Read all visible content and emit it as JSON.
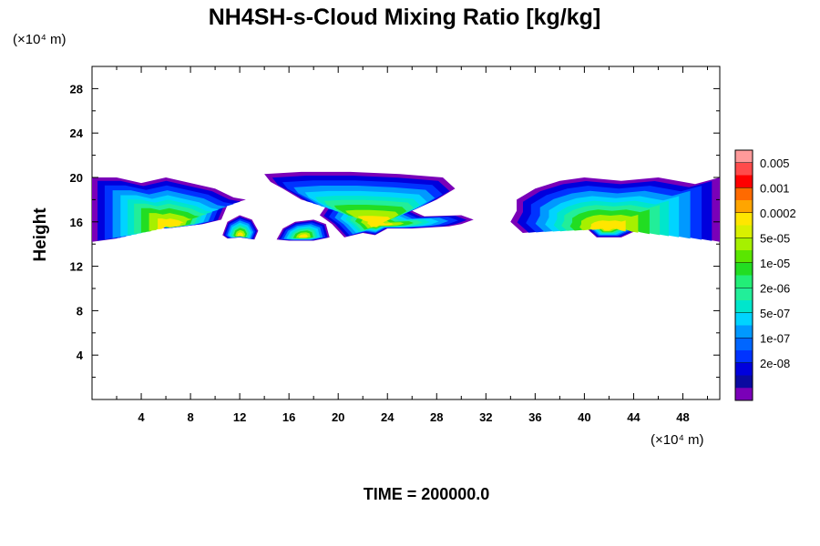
{
  "chart_data": {
    "type": "heatmap",
    "title": "NH4SH-s-Cloud Mixing Ratio [kg/kg]",
    "ylabel": "Height",
    "xlabel": "",
    "x_unit": "(×10⁴ m)",
    "y_unit": "(×10⁴ m)",
    "xlim": [
      0,
      51
    ],
    "ylim": [
      0,
      30
    ],
    "x_ticks": [
      "4",
      "8",
      "12",
      "16",
      "20",
      "24",
      "28",
      "32",
      "36",
      "40",
      "44",
      "48"
    ],
    "y_ticks": [
      "4",
      "8",
      "12",
      "16",
      "20",
      "24",
      "28"
    ],
    "footer": "TIME = 200000.0",
    "colorbar": {
      "labels": [
        "0.005",
        "0.001",
        "0.0002",
        "5e-05",
        "1e-05",
        "2e-06",
        "5e-07",
        "1e-07",
        "2e-08"
      ],
      "colors": [
        "#ff9a9a",
        "#ff4b4b",
        "#ff0000",
        "#ff6a00",
        "#ffa500",
        "#ffe600",
        "#d9f000",
        "#a6f000",
        "#5ae600",
        "#22dd22",
        "#22ee77",
        "#22ee99",
        "#00e6cc",
        "#00d4ff",
        "#0099ff",
        "#0066ff",
        "#0033ff",
        "#0000dd",
        "#0a0aa0",
        "#7a00b8"
      ]
    },
    "cloud_regions": [
      {
        "name": "left-edge-cloud",
        "shape": [
          [
            0,
            20
          ],
          [
            2,
            20
          ],
          [
            4,
            19.5
          ],
          [
            6,
            20
          ],
          [
            8,
            19.5
          ],
          [
            10,
            19
          ],
          [
            11.5,
            18.2
          ],
          [
            12.5,
            18
          ],
          [
            11,
            17.5
          ],
          [
            10.5,
            16.2
          ],
          [
            9,
            15.8
          ],
          [
            6,
            15.4
          ],
          [
            4,
            15.8
          ],
          [
            2,
            14.5
          ],
          [
            0,
            14.2
          ]
        ],
        "max_value": 0.0002
      },
      {
        "name": "blob-12",
        "shape": [
          [
            10.6,
            14.8
          ],
          [
            11,
            16
          ],
          [
            12,
            16.6
          ],
          [
            13,
            16.2
          ],
          [
            13.5,
            15.2
          ],
          [
            13.2,
            14.4
          ],
          [
            12,
            14.6
          ],
          [
            11,
            14.5
          ]
        ],
        "max_value": 0.0002
      },
      {
        "name": "blob-16",
        "shape": [
          [
            15,
            14.4
          ],
          [
            15.5,
            15.4
          ],
          [
            16.5,
            16
          ],
          [
            18,
            16.2
          ],
          [
            19,
            15.8
          ],
          [
            19.3,
            14.6
          ],
          [
            18,
            14.3
          ],
          [
            16,
            14.3
          ]
        ],
        "max_value": 0.0002
      },
      {
        "name": "central-anvil",
        "shape": [
          [
            14,
            20.3
          ],
          [
            17,
            20.5
          ],
          [
            21,
            20.5
          ],
          [
            25,
            20.3
          ],
          [
            28.5,
            20
          ],
          [
            29.5,
            19
          ],
          [
            28,
            18
          ],
          [
            26,
            17
          ],
          [
            27,
            16.5
          ],
          [
            30,
            16.6
          ],
          [
            31,
            16.2
          ],
          [
            30,
            15.8
          ],
          [
            29,
            15.6
          ],
          [
            26,
            15.4
          ],
          [
            24,
            15.4
          ],
          [
            23,
            14.8
          ],
          [
            22,
            15
          ],
          [
            20.5,
            14.6
          ],
          [
            19.5,
            15.8
          ],
          [
            18.5,
            16.6
          ],
          [
            19,
            17.4
          ],
          [
            17,
            18
          ],
          [
            15.5,
            19
          ],
          [
            14.5,
            19.6
          ]
        ],
        "max_value": 0.0002
      },
      {
        "name": "right-cloud",
        "shape": [
          [
            34.5,
            18
          ],
          [
            36,
            19
          ],
          [
            38,
            19.7
          ],
          [
            40,
            20
          ],
          [
            43,
            19.7
          ],
          [
            46,
            20
          ],
          [
            49,
            19.4
          ],
          [
            51,
            20
          ],
          [
            51,
            14.2
          ],
          [
            49,
            14.6
          ],
          [
            47,
            15.4
          ],
          [
            45,
            15.6
          ],
          [
            43,
            14.6
          ],
          [
            41,
            14.6
          ],
          [
            40,
            15.6
          ],
          [
            37,
            15.2
          ],
          [
            35,
            15
          ],
          [
            34,
            16
          ],
          [
            34.5,
            17
          ]
        ],
        "max_value": 0.0002
      }
    ]
  }
}
